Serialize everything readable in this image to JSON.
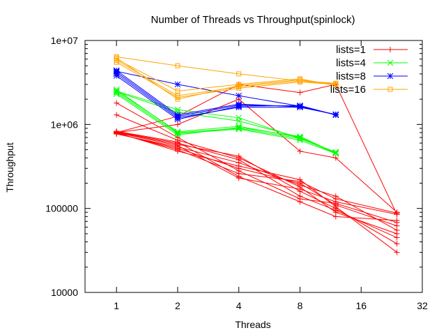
{
  "chart_data": {
    "type": "line",
    "title": "Number of Threads vs Throughput(spinlock)",
    "xlabel": "Threads",
    "ylabel": "Throughput",
    "xscale": "log2",
    "yscale": "log10",
    "xlim": [
      0.7,
      32
    ],
    "ylim": [
      10000,
      10000000
    ],
    "x_ticks": [
      1,
      2,
      4,
      8,
      16,
      32
    ],
    "x_tick_labels": [
      "1",
      "2",
      "4",
      "8",
      "16",
      "32"
    ],
    "y_ticks": [
      10000,
      100000,
      1000000,
      10000000
    ],
    "y_tick_labels": [
      "10000",
      "100000",
      "1e+06",
      "1e+07"
    ],
    "grid": false,
    "legend_position": "top-right",
    "series": [
      {
        "name": "lists=1",
        "color": "#ff0000",
        "marker": "plus",
        "x": [
          1,
          2,
          4,
          8,
          12,
          24,
          1,
          2,
          4,
          8,
          12,
          24,
          1,
          2,
          4,
          8,
          12,
          24,
          1,
          2,
          4,
          8,
          12,
          24,
          1,
          2,
          4,
          8,
          12,
          24,
          1,
          2,
          4,
          8,
          12,
          24,
          1,
          2,
          4,
          8,
          12,
          24,
          1,
          2,
          4,
          8,
          12,
          24,
          1,
          2,
          4,
          8,
          12,
          24,
          1,
          2,
          4,
          8,
          12,
          24,
          1,
          2,
          4,
          8,
          12,
          24,
          1,
          2,
          4,
          8,
          12,
          24
        ],
        "y": [
          800000,
          560000,
          230000,
          170000,
          120000,
          85000,
          780000,
          520000,
          300000,
          200000,
          110000,
          62000,
          820000,
          600000,
          380000,
          140000,
          95000,
          45000,
          790000,
          500000,
          260000,
          210000,
          130000,
          88000,
          810000,
          580000,
          420000,
          160000,
          100000,
          38000,
          770000,
          540000,
          350000,
          190000,
          140000,
          55000,
          830000,
          620000,
          240000,
          120000,
          80000,
          72000,
          800000,
          480000,
          320000,
          220000,
          105000,
          30000,
          1800000,
          700000,
          280000,
          130000,
          115000,
          68000,
          1300000,
          650000,
          400000,
          180000,
          90000,
          50000,
          800000,
          1250000,
          3000000,
          2400000,
          3000000,
          85000,
          800000,
          1000000,
          2000000,
          480000,
          400000,
          90000
        ]
      },
      {
        "name": "lists=4",
        "color": "#00ff00",
        "marker": "cross",
        "x": [
          1,
          2,
          4,
          8,
          12,
          1,
          2,
          4,
          8,
          12,
          1,
          2,
          4,
          8,
          12,
          1,
          2,
          4,
          8,
          12,
          1,
          2,
          4,
          8,
          12,
          1,
          2,
          4,
          8,
          12
        ],
        "y": [
          2500000,
          820000,
          950000,
          700000,
          460000,
          2400000,
          780000,
          880000,
          650000,
          450000,
          2600000,
          800000,
          900000,
          680000,
          470000,
          2300000,
          750000,
          920000,
          720000,
          455000,
          2500000,
          1500000,
          1200000,
          680000,
          460000,
          2450000,
          1400000,
          1100000,
          700000,
          450000
        ]
      },
      {
        "name": "lists=8",
        "color": "#0000ff",
        "marker": "star",
        "x": [
          1,
          2,
          4,
          8,
          12,
          1,
          2,
          4,
          8,
          12,
          1,
          2,
          4,
          8,
          12,
          1,
          2,
          4,
          8,
          12,
          1,
          2,
          4,
          8,
          12
        ],
        "y": [
          4200000,
          1250000,
          1700000,
          1650000,
          1300000,
          4000000,
          1200000,
          1600000,
          1600000,
          1320000,
          4400000,
          1300000,
          1750000,
          1620000,
          1310000,
          3800000,
          1150000,
          1650000,
          1680000,
          1300000,
          4300000,
          3000000,
          2200000,
          1650000,
          1300000
        ]
      },
      {
        "name": "lists=16",
        "color": "#ffa500",
        "marker": "square",
        "x": [
          1,
          2,
          4,
          8,
          12,
          1,
          2,
          4,
          8,
          12,
          1,
          2,
          4,
          8,
          12,
          1,
          2,
          4,
          8,
          12,
          1,
          2,
          4,
          8,
          12
        ],
        "y": [
          6200000,
          2000000,
          2900000,
          3400000,
          3000000,
          5800000,
          2200000,
          2800000,
          3300000,
          3100000,
          6000000,
          2500000,
          3000000,
          3500000,
          2900000,
          5500000,
          2100000,
          2700000,
          3200000,
          3000000,
          6400000,
          5000000,
          4000000,
          3300000,
          3000000
        ]
      }
    ]
  }
}
